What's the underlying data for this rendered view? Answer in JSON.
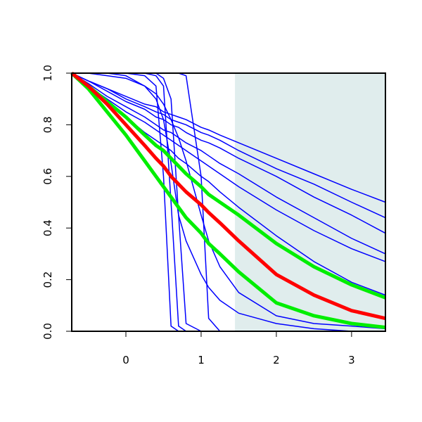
{
  "chart_data": {
    "type": "line",
    "x": [
      -0.72,
      -0.5,
      -0.25,
      0,
      0.25,
      0.4,
      0.5,
      0.6,
      0.7,
      0.8,
      1.0,
      1.1,
      1.25,
      1.5,
      2,
      2.5,
      3,
      3.45
    ],
    "series": [
      {
        "color": "#0000ff",
        "values": [
          1,
          1,
          1,
          1,
          0.99,
          0.95,
          0.6,
          0.02,
          0,
          0,
          0,
          0,
          0,
          0,
          0,
          0,
          0,
          0
        ]
      },
      {
        "color": "#0000ff",
        "values": [
          1,
          1,
          1,
          1,
          1,
          0.99,
          0.95,
          0.5,
          0.02,
          0,
          0,
          0,
          0,
          0,
          0,
          0,
          0,
          0
        ]
      },
      {
        "color": "#0000ff",
        "values": [
          1,
          1,
          1,
          1,
          1,
          1,
          0.98,
          0.9,
          0.45,
          0.03,
          0,
          0,
          0,
          0,
          0,
          0,
          0,
          0
        ]
      },
      {
        "color": "#0000ff",
        "values": [
          1,
          1,
          1,
          1,
          1,
          1,
          1,
          1,
          1,
          0.99,
          0.6,
          0.05,
          0,
          0,
          0,
          0,
          0,
          0
        ]
      },
      {
        "color": "#0000ff",
        "values": [
          1,
          1,
          1,
          0.99,
          0.95,
          0.9,
          0.82,
          0.65,
          0.45,
          0.35,
          0.22,
          0.17,
          0.12,
          0.07,
          0.03,
          0.01,
          0,
          0
        ]
      },
      {
        "color": "#0000ff",
        "values": [
          1,
          1,
          0.99,
          0.98,
          0.95,
          0.92,
          0.88,
          0.82,
          0.75,
          0.66,
          0.45,
          0.35,
          0.25,
          0.15,
          0.06,
          0.03,
          0.02,
          0.01
        ]
      },
      {
        "color": "#0000ff",
        "values": [
          1,
          0.97,
          0.94,
          0.91,
          0.88,
          0.87,
          0.85,
          0.84,
          0.83,
          0.82,
          0.79,
          0.78,
          0.76,
          0.73,
          0.67,
          0.61,
          0.55,
          0.5
        ]
      },
      {
        "color": "#0000ff",
        "values": [
          1,
          0.97,
          0.94,
          0.9,
          0.87,
          0.85,
          0.84,
          0.82,
          0.81,
          0.8,
          0.77,
          0.76,
          0.74,
          0.7,
          0.63,
          0.57,
          0.5,
          0.44
        ]
      },
      {
        "color": "#0000ff",
        "values": [
          1,
          0.97,
          0.93,
          0.89,
          0.86,
          0.83,
          0.82,
          0.8,
          0.79,
          0.77,
          0.74,
          0.73,
          0.71,
          0.67,
          0.6,
          0.52,
          0.45,
          0.38
        ]
      },
      {
        "color": "#0000ff",
        "values": [
          1,
          0.96,
          0.91,
          0.87,
          0.83,
          0.8,
          0.78,
          0.77,
          0.75,
          0.73,
          0.7,
          0.68,
          0.65,
          0.61,
          0.52,
          0.44,
          0.36,
          0.3
        ]
      },
      {
        "color": "#0000ff",
        "values": [
          1,
          0.95,
          0.9,
          0.85,
          0.81,
          0.78,
          0.76,
          0.74,
          0.72,
          0.7,
          0.66,
          0.64,
          0.61,
          0.56,
          0.47,
          0.39,
          0.32,
          0.27
        ]
      },
      {
        "color": "#0000ff",
        "values": [
          1,
          0.95,
          0.89,
          0.83,
          0.77,
          0.74,
          0.72,
          0.7,
          0.67,
          0.65,
          0.6,
          0.58,
          0.54,
          0.48,
          0.37,
          0.27,
          0.19,
          0.14
        ]
      },
      {
        "color": "#00ee00",
        "values": [
          1,
          0.95,
          0.89,
          0.83,
          0.76,
          0.72,
          0.7,
          0.67,
          0.64,
          0.61,
          0.56,
          0.53,
          0.5,
          0.45,
          0.34,
          0.25,
          0.18,
          0.13
        ]
      },
      {
        "color": "#00ee00",
        "values": [
          1,
          0.94,
          0.85,
          0.76,
          0.66,
          0.6,
          0.56,
          0.52,
          0.48,
          0.44,
          0.38,
          0.34,
          0.3,
          0.23,
          0.11,
          0.06,
          0.03,
          0.015
        ]
      },
      {
        "color": "#ff0000",
        "values": [
          1,
          0.95,
          0.88,
          0.8,
          0.72,
          0.67,
          0.64,
          0.6,
          0.57,
          0.54,
          0.49,
          0.46,
          0.42,
          0.35,
          0.22,
          0.14,
          0.08,
          0.05
        ]
      }
    ],
    "shade": {
      "xlim": [
        1.45,
        3.45
      ],
      "color": "#e0eded"
    },
    "xlim": [
      -0.72,
      3.45
    ],
    "ylim": [
      0,
      1
    ],
    "xticks": [
      0,
      1,
      2,
      3
    ],
    "yticks": [
      {
        "value": 0,
        "label": "0.0"
      },
      0.2,
      0.4,
      0.6,
      0.8,
      {
        "value": 1,
        "label": "1.0"
      }
    ]
  }
}
